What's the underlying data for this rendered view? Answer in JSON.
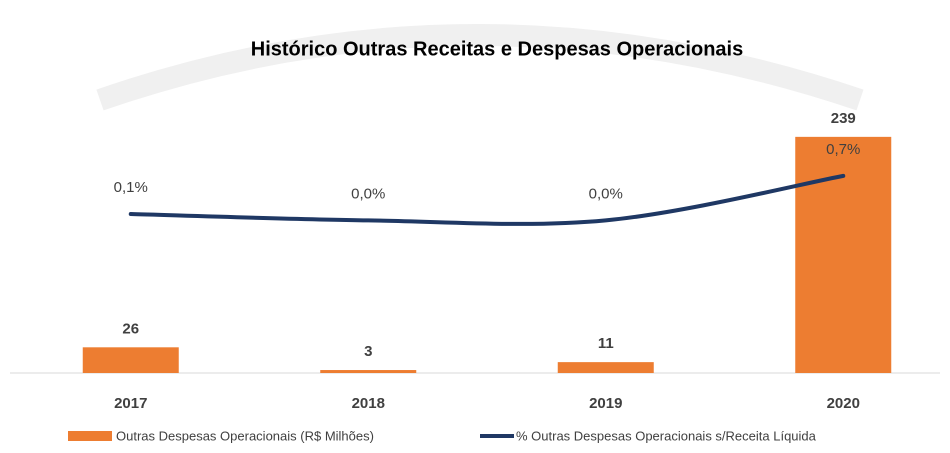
{
  "chart_data": {
    "type": "bar_line",
    "title": "Histórico Outras Receitas e Despesas Operacionais",
    "categories": [
      "2017",
      "2018",
      "2019",
      "2020"
    ],
    "series": [
      {
        "name": "Outras Despesas Operacionais (R$ Milhões)",
        "color": "#ed7d31",
        "type": "bar",
        "values": [
          26,
          3,
          11,
          239
        ]
      },
      {
        "name": "% Outras Despesas Operacionais s/Receita Líquida",
        "color": "#1f3864",
        "type": "line",
        "axis": "y2",
        "values": [
          0.1,
          0.0,
          0.0,
          0.7
        ],
        "value_labels": [
          "0,1%",
          "0,0%",
          "0,0%",
          "0,7%"
        ]
      }
    ],
    "ylim": [
      0,
      251
    ],
    "y2lim": [
      -2.4,
      1.5
    ],
    "legend": "bottom"
  }
}
